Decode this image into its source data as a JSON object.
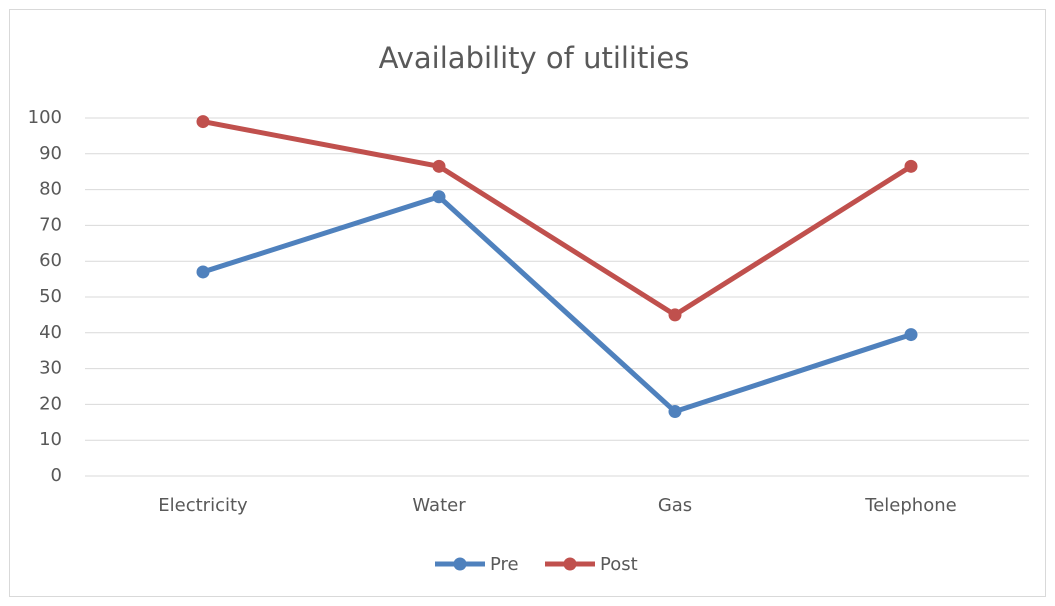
{
  "chart_data": {
    "type": "line",
    "title": "Availability of utilities",
    "categories": [
      "Electricity",
      "Water",
      "Gas",
      "Telephone"
    ],
    "series": [
      {
        "name": "Pre",
        "color": "#4f81bd",
        "values": [
          57,
          78,
          18,
          39.5
        ]
      },
      {
        "name": "Post",
        "color": "#c0504d",
        "values": [
          99,
          86.5,
          45,
          86.5
        ]
      }
    ],
    "ylim": [
      0,
      100
    ],
    "yticks": [
      0,
      10,
      20,
      30,
      40,
      50,
      60,
      70,
      80,
      90,
      100
    ],
    "grid": true,
    "legend": "bottom"
  }
}
